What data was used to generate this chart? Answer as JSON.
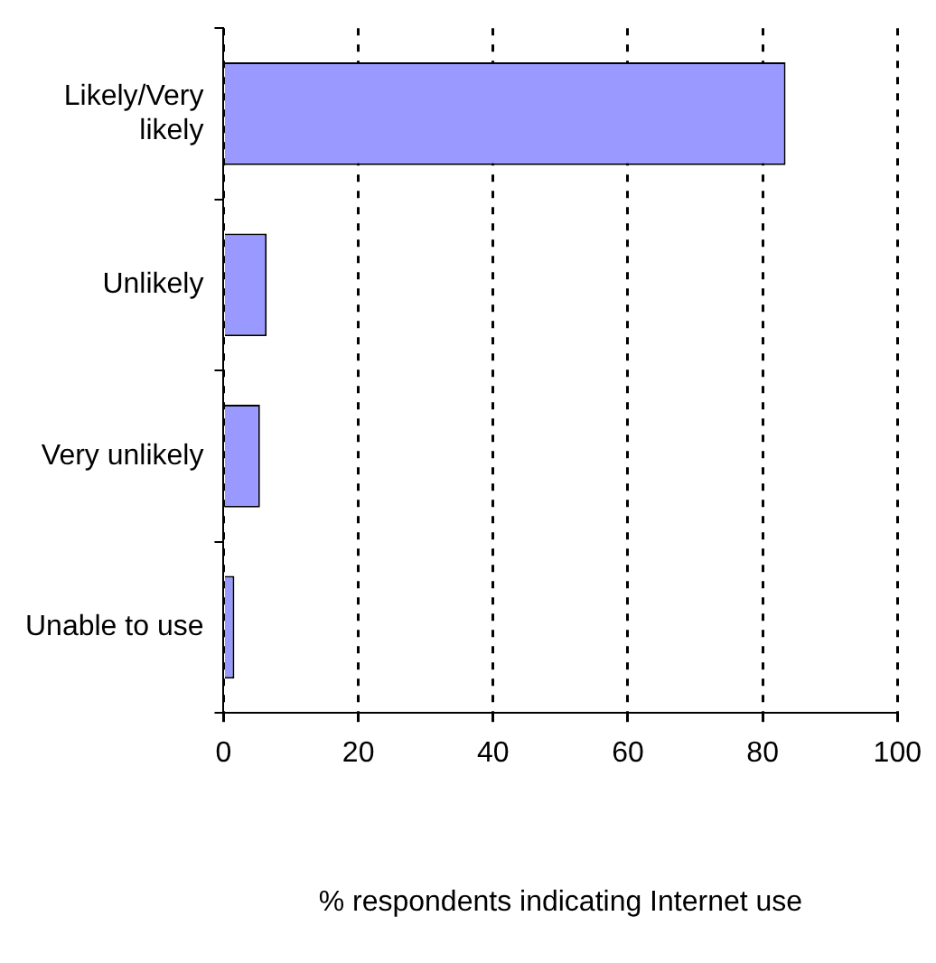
{
  "chart_data": {
    "type": "bar",
    "orientation": "horizontal",
    "categories": [
      "Likely/Very likely",
      "Unlikely",
      "Very unlikely",
      "Unable to use"
    ],
    "values": [
      83.4,
      6.4,
      5.4,
      1.6
    ],
    "color": "#9999ff",
    "xlim": [
      0,
      100
    ],
    "xticks": [
      0,
      20,
      40,
      60,
      80,
      100
    ],
    "xlabel": "% respondents indicating Internet use",
    "grid": "x",
    "line_style": "dashed"
  }
}
